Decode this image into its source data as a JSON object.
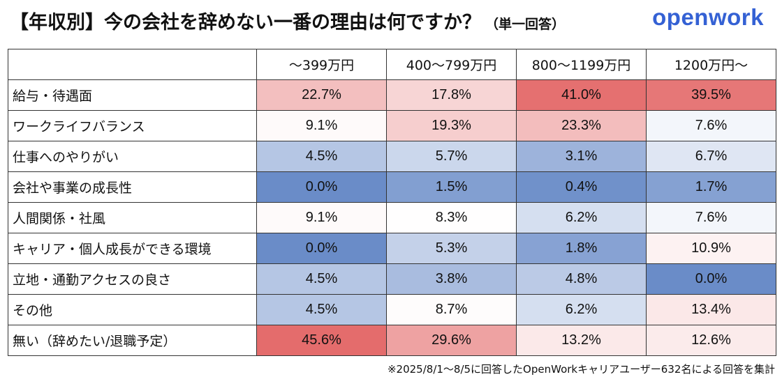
{
  "title": "【年収別】今の会社を辞めない一番の理由は何ですか？",
  "subtitle": "（単一回答）",
  "logo": "openwork",
  "footnote": "※2025/8/1〜8/5に回答したOpenWorkキャリアユーザー632名による回答を集計",
  "colors": {
    "high": "#e46c6c",
    "low": "#6a8cc8",
    "neutral": "#ffffff"
  },
  "chart_data": {
    "type": "table",
    "columns": [
      "〜399万円",
      "400〜799万円",
      "800〜1199万円",
      "1200万円〜"
    ],
    "rows": [
      {
        "label": "給与・待遇面",
        "values": [
          "22.7%",
          "17.8%",
          "41.0%",
          "39.5%"
        ],
        "nums": [
          22.7,
          17.8,
          41.0,
          39.5
        ]
      },
      {
        "label": "ワークライフバランス",
        "values": [
          "9.1%",
          "19.3%",
          "23.3%",
          "7.6%"
        ],
        "nums": [
          9.1,
          19.3,
          23.3,
          7.6
        ]
      },
      {
        "label": "仕事へのやりがい",
        "values": [
          "4.5%",
          "5.7%",
          "3.1%",
          "6.7%"
        ],
        "nums": [
          4.5,
          5.7,
          3.1,
          6.7
        ]
      },
      {
        "label": "会社や事業の成長性",
        "values": [
          "0.0%",
          "1.5%",
          "0.4%",
          "1.7%"
        ],
        "nums": [
          0.0,
          1.5,
          0.4,
          1.7
        ]
      },
      {
        "label": "人間関係・社風",
        "values": [
          "9.1%",
          "8.3%",
          "6.2%",
          "7.6%"
        ],
        "nums": [
          9.1,
          8.3,
          6.2,
          7.6
        ]
      },
      {
        "label": "キャリア・個人成長ができる環境",
        "values": [
          "0.0%",
          "5.3%",
          "1.8%",
          "10.9%"
        ],
        "nums": [
          0.0,
          5.3,
          1.8,
          10.9
        ]
      },
      {
        "label": "立地・通勤アクセスの良さ",
        "values": [
          "4.5%",
          "3.8%",
          "4.8%",
          "0.0%"
        ],
        "nums": [
          4.5,
          3.8,
          4.8,
          0.0
        ]
      },
      {
        "label": "その他",
        "values": [
          "4.5%",
          "8.7%",
          "6.2%",
          "13.4%"
        ],
        "nums": [
          4.5,
          8.7,
          6.2,
          13.4
        ]
      },
      {
        "label": "無い（辞めたい/退職予定）",
        "values": [
          "45.6%",
          "29.6%",
          "13.2%",
          "12.6%"
        ],
        "nums": [
          45.6,
          29.6,
          13.2,
          12.6
        ]
      }
    ]
  }
}
